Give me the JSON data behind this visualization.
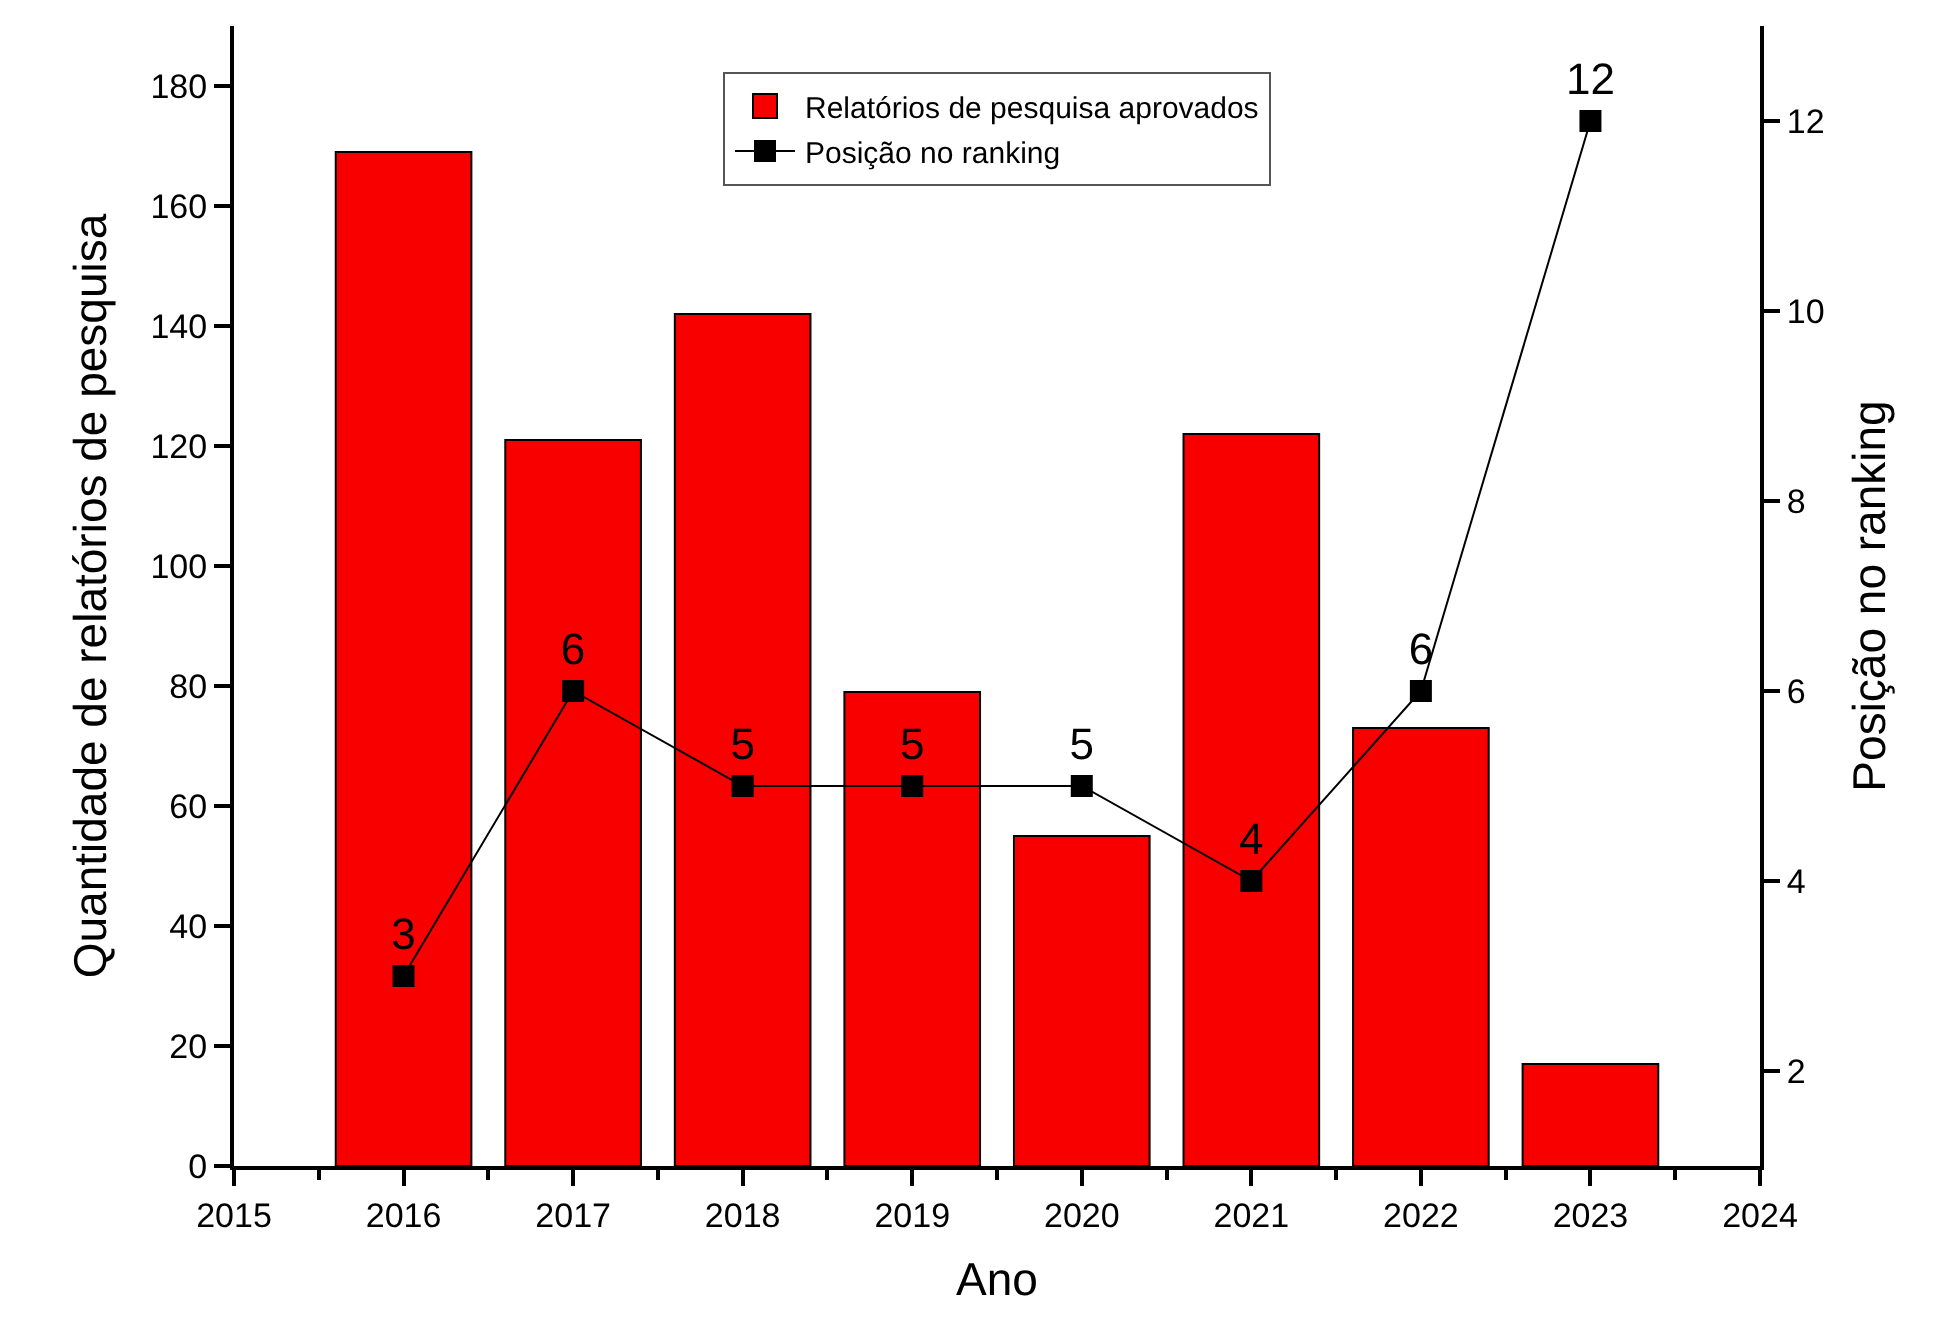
{
  "chart_data": {
    "type": "bar",
    "xlabel": "Ano",
    "ylabel": "Quantidade de relatórios de pesquisa",
    "y2label": "Posição no ranking",
    "x": [
      2016,
      2017,
      2018,
      2019,
      2020,
      2021,
      2022,
      2023
    ],
    "series": [
      {
        "name": "Relatórios de pesquisa aprovados",
        "color": "#f80000",
        "values": [
          169,
          121,
          142,
          79,
          55,
          122,
          73,
          17
        ]
      },
      {
        "name": "Posição no ranking",
        "type": "line",
        "axis": "y2",
        "color": "#000000",
        "marker": "square",
        "line_style": "solid",
        "values": [
          3,
          6,
          5,
          5,
          5,
          4,
          6,
          12
        ],
        "value_labels": [
          "3",
          "6",
          "5",
          "5",
          "5",
          "4",
          "6",
          "12"
        ]
      }
    ],
    "xlim": [
      2015,
      2024
    ],
    "xticks": [
      2015,
      2016,
      2017,
      2018,
      2019,
      2020,
      2021,
      2022,
      2023,
      2024
    ],
    "ylim": [
      0,
      190
    ],
    "yticks": [
      0,
      20,
      40,
      60,
      80,
      100,
      120,
      140,
      160,
      180
    ],
    "y2lim": [
      1,
      13
    ],
    "y2ticks": [
      2,
      4,
      6,
      8,
      10,
      12
    ],
    "legend": "top"
  }
}
